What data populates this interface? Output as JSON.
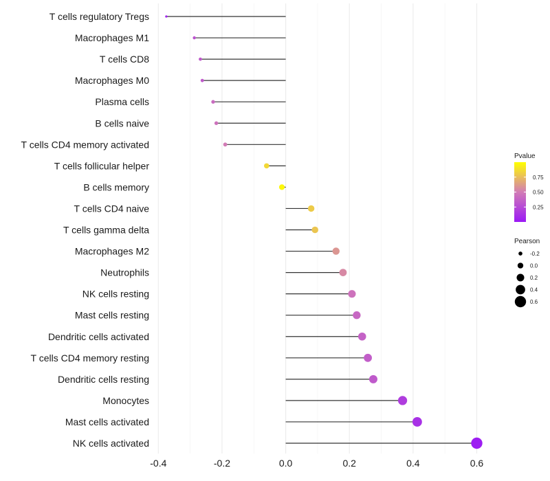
{
  "chart_data": {
    "type": "lollipop",
    "orientation": "horizontal",
    "title": "",
    "xlabel": "",
    "ylabel": "",
    "xlim": [
      -0.405,
      0.64
    ],
    "xticks": [
      -0.4,
      -0.2,
      0.0,
      0.2,
      0.4,
      0.6
    ],
    "xtick_labels": [
      "-0.4",
      "-0.2",
      "0.0",
      "0.2",
      "0.4",
      "0.6"
    ],
    "grid": true,
    "categories": [
      "T cells regulatory  Tregs",
      "Macrophages M1",
      "T cells CD8",
      "Macrophages M0",
      "Plasma cells",
      "B cells naive",
      "T cells CD4 memory activated",
      "T cells follicular helper",
      "B cells memory",
      "T cells CD4 naive",
      "T cells gamma delta",
      "Macrophages M2",
      "Neutrophils",
      "NK cells resting",
      "Mast cells resting",
      "Dendritic cells activated",
      "T cells CD4 memory resting",
      "Dendritic cells resting",
      "Monocytes",
      "Mast cells activated",
      "NK cells activated"
    ],
    "values": [
      -0.375,
      -0.287,
      -0.268,
      -0.262,
      -0.228,
      -0.218,
      -0.19,
      -0.06,
      -0.012,
      0.08,
      0.092,
      0.158,
      0.18,
      0.208,
      0.223,
      0.24,
      0.258,
      0.275,
      0.367,
      0.413,
      0.6
    ],
    "pvalues": [
      0.05,
      0.3,
      0.33,
      0.33,
      0.42,
      0.45,
      0.5,
      0.85,
      0.97,
      0.8,
      0.78,
      0.6,
      0.55,
      0.45,
      0.4,
      0.37,
      0.35,
      0.33,
      0.18,
      0.12,
      0.02
    ],
    "legends": {
      "color": {
        "title": "Pvalue",
        "ticks": [
          0.25,
          0.5,
          0.75
        ],
        "tick_labels": [
          "0.25",
          "0.50",
          "0.75"
        ],
        "range": [
          0.0,
          1.0
        ],
        "color_low": "#9b19f5",
        "color_mid": "#d27cb6",
        "color_high": "#ffff00"
      },
      "size": {
        "title": "Pearson",
        "values": [
          -0.2,
          0.0,
          0.2,
          0.4,
          0.6
        ],
        "labels": [
          "-0.2",
          "0.0",
          "0.2",
          "0.4",
          "0.6"
        ]
      },
      "placement": "right"
    }
  }
}
